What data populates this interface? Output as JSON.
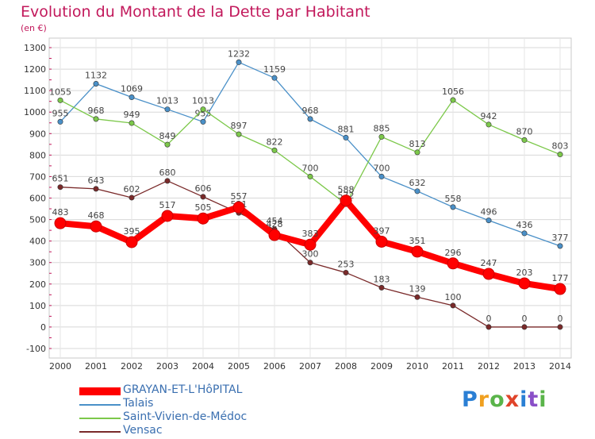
{
  "title": "Evolution du Montant de la Dette par Habitant",
  "unit_note": "(en €)",
  "logo": {
    "text": "Proxiti",
    "colors": [
      "#2a7fd4",
      "#f0a020",
      "#5ab44a",
      "#e0442a",
      "#2a7fd4",
      "#8a4fc8",
      "#5ab44a"
    ]
  },
  "chart_data": {
    "type": "line",
    "title": "Evolution du Montant de la Dette par Habitant",
    "ylabel": "(en €)",
    "categories": [
      "2000",
      "2001",
      "2002",
      "2003",
      "2004",
      "2005",
      "2006",
      "2007",
      "2008",
      "2009",
      "2010",
      "2011",
      "2012",
      "2013",
      "2014"
    ],
    "ylim": [
      -100,
      1300
    ],
    "yticks": [
      -100,
      0,
      100,
      200,
      300,
      400,
      500,
      600,
      700,
      800,
      900,
      1000,
      1100,
      1200,
      1300
    ],
    "grid": true,
    "legend_position": "bottom-left",
    "series": [
      {
        "name": "GRAYAN-ET-L'HôPITAL",
        "color": "#ff0000",
        "values": [
          483,
          468,
          395,
          517,
          505,
          557,
          428,
          383,
          588,
          397,
          351,
          296,
          247,
          203,
          177
        ]
      },
      {
        "name": "Talais",
        "color": "#4a90c8",
        "values": [
          955,
          1132,
          1069,
          1013,
          955,
          1232,
          1159,
          968,
          881,
          700,
          632,
          558,
          496,
          436,
          377
        ]
      },
      {
        "name": "Saint-Vivien-de-Médoc",
        "color": "#7cc84a",
        "values": [
          1055,
          968,
          949,
          849,
          1013,
          897,
          822,
          700,
          572,
          885,
          813,
          1056,
          942,
          870,
          803
        ]
      },
      {
        "name": "Vensac",
        "color": "#7a2a2a",
        "values": [
          651,
          643,
          602,
          680,
          606,
          531,
          454,
          300,
          253,
          183,
          139,
          100,
          0,
          0,
          0
        ]
      }
    ]
  }
}
